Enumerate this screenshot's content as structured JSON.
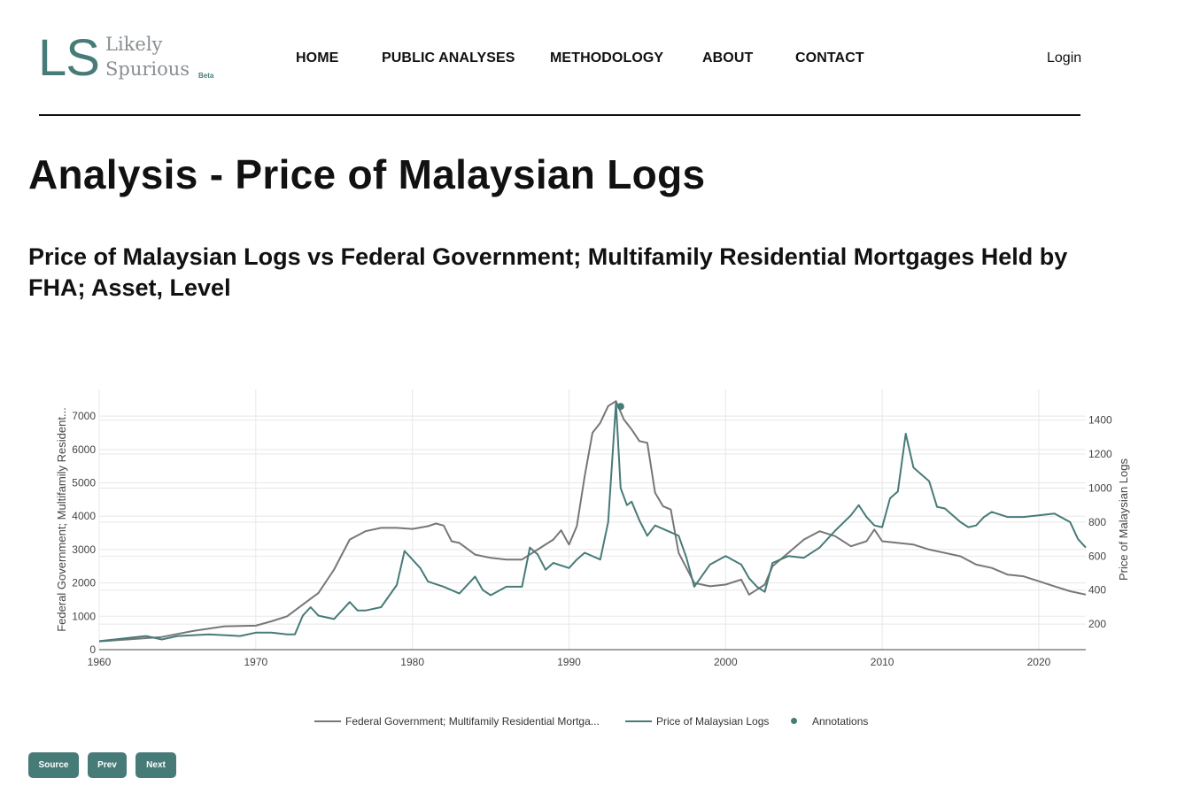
{
  "header": {
    "logo_mark": "LS",
    "logo_word1": "Likely",
    "logo_word2": "Spurious",
    "logo_badge": "Beta",
    "nav": [
      "HOME",
      "PUBLIC ANALYSES",
      "METHODOLOGY",
      "ABOUT",
      "CONTACT"
    ],
    "login_label": "Login"
  },
  "page": {
    "title": "Analysis - Price of Malaysian Logs",
    "subtitle": "Price of Malaysian Logs vs Federal Government; Multifamily Residential Mortgages Held by FHA; Asset, Level"
  },
  "buttons": {
    "source": "Source",
    "prev": "Prev",
    "next": "Next"
  },
  "colors": {
    "accent": "#477b78",
    "series1": "#777777",
    "series2": "#477b78",
    "grid": "#e8e8e8"
  },
  "chart_data": {
    "type": "line",
    "xlabel": "",
    "ylabel_left": "Federal Government; Multifamily Resident...",
    "ylabel_right": "Price of Malaysian Logs",
    "xlim": [
      1960,
      2023
    ],
    "ylim_left": [
      0,
      7800
    ],
    "ylim_right": [
      50,
      1580
    ],
    "x_ticks": [
      1960,
      1970,
      1980,
      1990,
      2000,
      2010,
      2020
    ],
    "y_left_ticks": [
      0,
      1000,
      2000,
      3000,
      4000,
      5000,
      6000,
      7000
    ],
    "y_right_ticks": [
      200,
      400,
      600,
      800,
      1000,
      1200,
      1400
    ],
    "grid": true,
    "legend_position": "bottom",
    "legend": [
      "Federal Government; Multifamily Residential Mortga...",
      "Price of Malaysian Logs",
      "Annotations"
    ],
    "series": [
      {
        "name": "Federal Government; Multifamily Residential Mortgages Held by FHA; Asset, Level",
        "axis": "left",
        "x": [
          1960,
          1962,
          1964,
          1966,
          1968,
          1970,
          1971,
          1972,
          1973,
          1974,
          1975,
          1976,
          1977,
          1978,
          1979,
          1980,
          1981,
          1981.5,
          1982,
          1982.5,
          1983,
          1984,
          1985,
          1986,
          1987,
          1988,
          1989,
          1989.5,
          1990,
          1990.5,
          1991,
          1991.5,
          1992,
          1992.5,
          1993,
          1993.5,
          1994,
          1994.5,
          1995,
          1995.5,
          1996,
          1996.5,
          1997,
          1998,
          1999,
          2000,
          2001,
          2001.5,
          2002,
          2002.5,
          2003,
          2004,
          2005,
          2006,
          2007,
          2008,
          2009,
          2009.5,
          2010,
          2011,
          2012,
          2013,
          2014,
          2015,
          2016,
          2017,
          2018,
          2019,
          2020,
          2021,
          2022,
          2023
        ],
        "y": [
          250,
          310,
          380,
          560,
          700,
          720,
          850,
          1000,
          1350,
          1700,
          2400,
          3300,
          3550,
          3650,
          3650,
          3620,
          3700,
          3780,
          3720,
          3250,
          3200,
          2850,
          2750,
          2700,
          2700,
          3000,
          3300,
          3580,
          3150,
          3700,
          5200,
          6500,
          6800,
          7300,
          7450,
          6900,
          6600,
          6250,
          6200,
          4700,
          4300,
          4200,
          2900,
          2000,
          1900,
          1950,
          2100,
          1650,
          1800,
          1950,
          2500,
          2900,
          3300,
          3550,
          3400,
          3100,
          3250,
          3600,
          3250,
          3200,
          3150,
          3000,
          2900,
          2800,
          2550,
          2450,
          2250,
          2200,
          2050,
          1900,
          1750,
          1650
        ]
      },
      {
        "name": "Price of Malaysian Logs",
        "axis": "right",
        "x": [
          1960,
          1962,
          1963,
          1964,
          1965,
          1967,
          1969,
          1970,
          1971,
          1972,
          1972.5,
          1973,
          1973.5,
          1974,
          1975,
          1976,
          1976.5,
          1977,
          1978,
          1979,
          1979.5,
          1980,
          1980.5,
          1981,
          1982,
          1983,
          1984,
          1984.5,
          1985,
          1986,
          1987,
          1987.5,
          1988,
          1988.5,
          1989,
          1990,
          1990.5,
          1991,
          1992,
          1992.5,
          1993,
          1993.3,
          1993.7,
          1994,
          1994.5,
          1995,
          1995.5,
          1996,
          1997,
          1997.5,
          1998,
          1999,
          2000,
          2001,
          2001.5,
          2002,
          2002.5,
          2003,
          2004,
          2005,
          2006,
          2007,
          2008,
          2008.5,
          2009,
          2009.5,
          2010,
          2010.5,
          2011,
          2011.5,
          2012,
          2013,
          2013.5,
          2014,
          2015,
          2015.5,
          2016,
          2016.5,
          2017,
          2018,
          2019,
          2020,
          2021,
          2022,
          2022.5,
          2023
        ],
        "y": [
          100,
          120,
          130,
          110,
          130,
          140,
          130,
          150,
          150,
          140,
          140,
          250,
          300,
          250,
          230,
          330,
          280,
          280,
          300,
          430,
          630,
          580,
          530,
          450,
          420,
          380,
          480,
          400,
          370,
          420,
          420,
          650,
          610,
          520,
          560,
          530,
          580,
          620,
          580,
          800,
          1500,
          1000,
          900,
          920,
          810,
          720,
          780,
          760,
          720,
          590,
          420,
          550,
          600,
          550,
          470,
          420,
          390,
          560,
          600,
          590,
          650,
          750,
          840,
          900,
          830,
          780,
          770,
          940,
          980,
          1320,
          1120,
          1040,
          890,
          880,
          800,
          770,
          780,
          830,
          860,
          830,
          830,
          840,
          850,
          800,
          700,
          650
        ]
      }
    ],
    "annotations": [
      {
        "x": 1993.3,
        "y": 1480,
        "axis": "right"
      }
    ]
  }
}
